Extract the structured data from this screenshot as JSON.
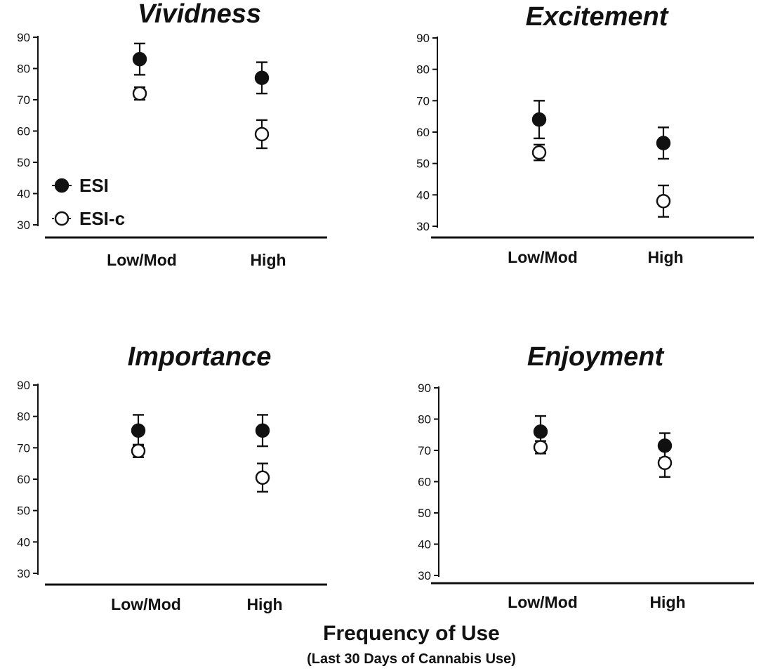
{
  "chart_data": [
    {
      "type": "scatter",
      "title": "Vividness",
      "categories": [
        "Low/Mod",
        "High"
      ],
      "ylim": [
        30,
        90
      ],
      "yticks": [
        30,
        40,
        50,
        60,
        70,
        80,
        90
      ],
      "series": [
        {
          "name": "ESI",
          "marker": "filled",
          "values": [
            83,
            77
          ],
          "error": [
            5,
            5
          ]
        },
        {
          "name": "ESI-c",
          "marker": "open",
          "values": [
            72,
            59
          ],
          "error": [
            2,
            4.5
          ]
        }
      ]
    },
    {
      "type": "scatter",
      "title": "Excitement",
      "categories": [
        "Low/Mod",
        "High"
      ],
      "ylim": [
        30,
        90
      ],
      "yticks": [
        30,
        40,
        50,
        60,
        70,
        80,
        90
      ],
      "series": [
        {
          "name": "ESI",
          "marker": "filled",
          "values": [
            64,
            56.5
          ],
          "error": [
            6,
            5
          ]
        },
        {
          "name": "ESI-c",
          "marker": "open",
          "values": [
            53.5,
            38
          ],
          "error": [
            2.5,
            5
          ]
        }
      ]
    },
    {
      "type": "scatter",
      "title": "Importance",
      "categories": [
        "Low/Mod",
        "High"
      ],
      "ylim": [
        30,
        90
      ],
      "yticks": [
        30,
        40,
        50,
        60,
        70,
        80,
        90
      ],
      "series": [
        {
          "name": "ESI",
          "marker": "filled",
          "values": [
            75.5,
            75.5
          ],
          "error": [
            5,
            5
          ]
        },
        {
          "name": "ESI-c",
          "marker": "open",
          "values": [
            69,
            60.5
          ],
          "error": [
            2,
            4.5
          ]
        }
      ]
    },
    {
      "type": "scatter",
      "title": "Enjoyment",
      "categories": [
        "Low/Mod",
        "High"
      ],
      "ylim": [
        30,
        90
      ],
      "yticks": [
        30,
        40,
        50,
        60,
        70,
        80,
        90
      ],
      "series": [
        {
          "name": "ESI",
          "marker": "filled",
          "values": [
            76,
            71.5
          ],
          "error": [
            5,
            4
          ]
        },
        {
          "name": "ESI-c",
          "marker": "open",
          "values": [
            71,
            66
          ],
          "error": [
            2,
            4.5
          ]
        }
      ]
    }
  ],
  "legend": {
    "items": [
      {
        "label": "ESI",
        "marker": "filled"
      },
      {
        "label": "ESI-c",
        "marker": "open"
      }
    ],
    "placement": "inside first panel, lower-left"
  },
  "xtitle": "Frequency of Use",
  "xsubtitle": "(Last 30 Days of Cannabis Use)",
  "colors": {
    "ink": "#111111",
    "background": "#ffffff"
  }
}
